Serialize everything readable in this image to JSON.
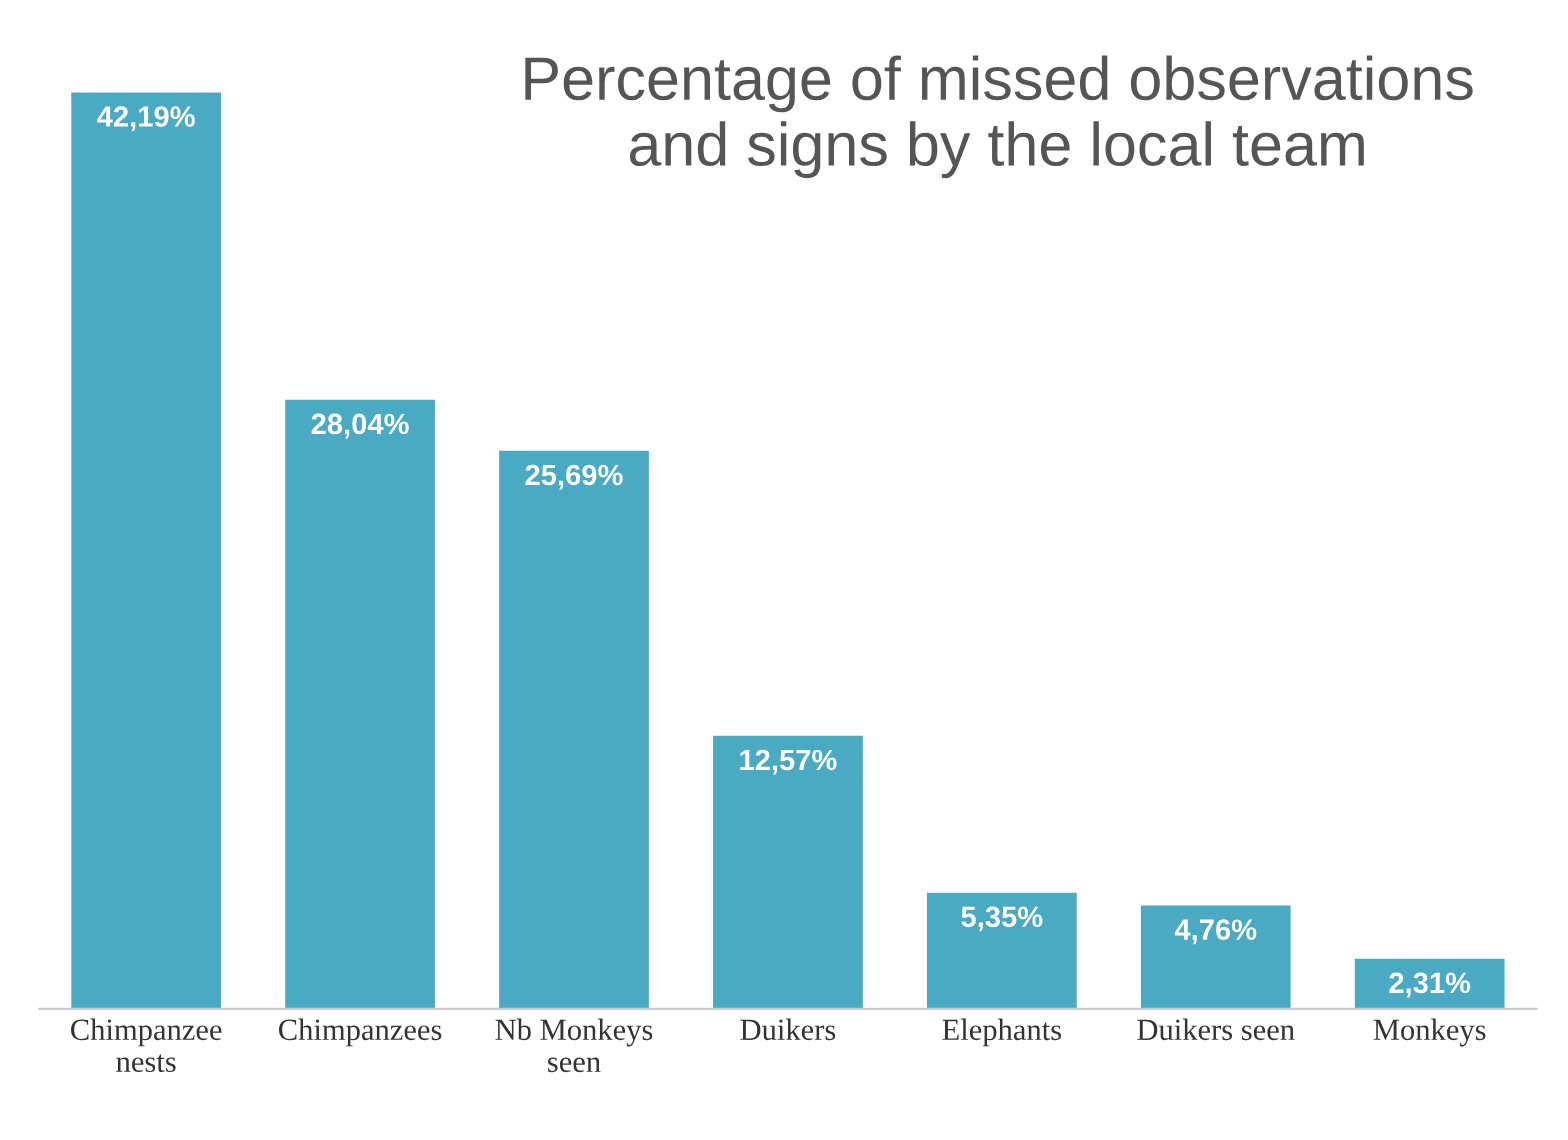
{
  "chart_data": {
    "type": "bar",
    "title": "Percentage of missed observations\nand signs by the local team",
    "categories": [
      "Chimpanzee\nnests",
      "Chimpanzees",
      "Nb Monkeys\nseen",
      "Duikers",
      "Elephants",
      "Duikers seen",
      "Monkeys"
    ],
    "values": [
      42.19,
      28.04,
      25.69,
      12.57,
      5.35,
      4.76,
      2.31
    ],
    "value_labels": [
      "42,19%",
      "28,04%",
      "25,69%",
      "12,57%",
      "5,35%",
      "4,76%",
      "2,31%"
    ],
    "color": "#4aaac4"
  }
}
